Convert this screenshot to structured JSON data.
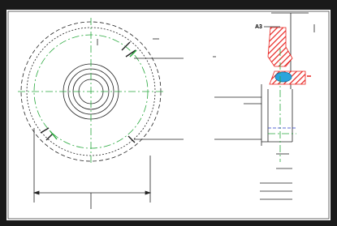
{
  "section_view": {
    "label": "A3"
  }
}
